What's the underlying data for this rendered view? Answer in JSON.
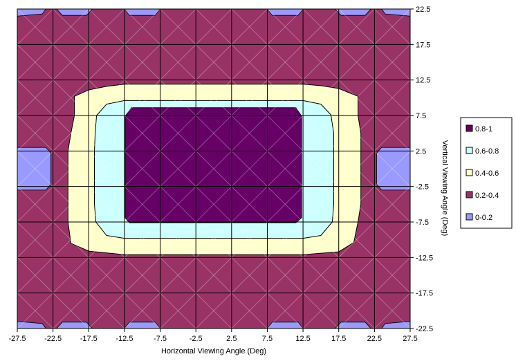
{
  "chart_data": {
    "type": "heatmap",
    "subtype": "contour",
    "title": "",
    "xlabel": "Horizontal Viewing Angle (Deg)",
    "ylabel": "Vertical Viewing Angle (Deg)",
    "xlim": [
      -27.5,
      27.5
    ],
    "ylim": [
      -22.5,
      22.5
    ],
    "x_ticks": [
      "-27.5",
      "-22.5",
      "-17.5",
      "-12.5",
      "-7.5",
      "-2.5",
      "2.5",
      "7.5",
      "12.5",
      "17.5",
      "22.5",
      "27.5"
    ],
    "y_ticks": [
      "22.5",
      "17.5",
      "12.5",
      "7.5",
      "2.5",
      "-2.5",
      "-7.5",
      "-12.5",
      "-17.5",
      "-22.5"
    ],
    "x_tick_values": [
      -27.5,
      -22.5,
      -17.5,
      -12.5,
      -7.5,
      -2.5,
      2.5,
      7.5,
      12.5,
      17.5,
      22.5,
      27.5
    ],
    "y_tick_values": [
      22.5,
      17.5,
      12.5,
      7.5,
      2.5,
      -2.5,
      -7.5,
      -12.5,
      -17.5,
      -22.5
    ],
    "grid": true,
    "legend_position": "right",
    "levels": [
      {
        "name": "0.8-1",
        "range": [
          0.8,
          1.0
        ],
        "color": "#660066"
      },
      {
        "name": "0.6-0.8",
        "range": [
          0.6,
          0.8
        ],
        "color": "#ccffff"
      },
      {
        "name": "0.4-0.6",
        "range": [
          0.4,
          0.6
        ],
        "color": "#ffffcc"
      },
      {
        "name": "0.2-0.4",
        "range": [
          0.2,
          0.4
        ],
        "color": "#993366"
      },
      {
        "name": "0-0.2",
        "range": [
          0.0,
          0.2
        ],
        "color": "#9999ff"
      }
    ],
    "contours": [
      {
        "level": "0.4-0.6",
        "points": [
          [
            -12.5,
            11.9
          ],
          [
            12.5,
            11.9
          ],
          [
            15,
            11.7
          ],
          [
            17.5,
            11.3
          ],
          [
            20.2,
            10.2
          ],
          [
            20.2,
            7.5
          ],
          [
            20.6,
            5
          ],
          [
            20.6,
            -5
          ],
          [
            20.2,
            -7.5
          ],
          [
            19.6,
            -10.4
          ],
          [
            17.5,
            -11.7
          ],
          [
            12.5,
            -12.1
          ],
          [
            -12.5,
            -12.1
          ],
          [
            -17.5,
            -11.6
          ],
          [
            -20,
            -10.5
          ],
          [
            -20.4,
            -7.5
          ],
          [
            -20.4,
            -5
          ],
          [
            -20.4,
            2.5
          ],
          [
            -20,
            5
          ],
          [
            -19.5,
            7.5
          ],
          [
            -19.5,
            10.2
          ],
          [
            -17.5,
            11.1
          ],
          [
            -15,
            11.6
          ]
        ]
      },
      {
        "level": "0.6-0.8",
        "points": [
          [
            -12.5,
            9.6
          ],
          [
            12.5,
            9.6
          ],
          [
            15,
            9.1
          ],
          [
            16.4,
            7.6
          ],
          [
            16.8,
            5
          ],
          [
            16.8,
            -5
          ],
          [
            16.6,
            -7.5
          ],
          [
            15,
            -9.4
          ],
          [
            12.5,
            -9.8
          ],
          [
            -12.5,
            -9.8
          ],
          [
            -15,
            -9.4
          ],
          [
            -16.5,
            -7.5
          ],
          [
            -16.7,
            -5
          ],
          [
            -16.7,
            2.5
          ],
          [
            -16.6,
            5
          ],
          [
            -16.4,
            7.5
          ],
          [
            -15,
            9.1
          ]
        ]
      },
      {
        "level": "0.8-1",
        "points": [
          [
            -11.5,
            8.6
          ],
          [
            11.5,
            8.6
          ],
          [
            12.3,
            7.4
          ],
          [
            12.3,
            -6.9
          ],
          [
            11.5,
            -7.6
          ],
          [
            -11.8,
            -7.6
          ],
          [
            -12.4,
            -6.9
          ],
          [
            -12.4,
            7.4
          ]
        ]
      }
    ],
    "low_regions": [
      {
        "level": "0-0.2",
        "points": [
          [
            -27.5,
            3
          ],
          [
            -23.5,
            3
          ],
          [
            -22.8,
            2.2
          ],
          [
            -22.8,
            -2.2
          ],
          [
            -23.5,
            -3
          ],
          [
            -27.5,
            -3
          ]
        ]
      },
      {
        "level": "0-0.2",
        "points": [
          [
            27.5,
            3
          ],
          [
            23.5,
            3
          ],
          [
            22.8,
            2.2
          ],
          [
            22.8,
            -2.2
          ],
          [
            23.5,
            -3
          ],
          [
            27.5,
            -3
          ]
        ]
      },
      {
        "level": "0-0.2",
        "points": [
          [
            -27.5,
            22.5
          ],
          [
            -23.5,
            22.5
          ],
          [
            -24,
            21.8
          ],
          [
            -27.5,
            21.5
          ]
        ]
      },
      {
        "level": "0-0.2",
        "points": [
          [
            -22,
            22.5
          ],
          [
            -17,
            22.5
          ],
          [
            -17.8,
            21.6
          ],
          [
            -21.2,
            21.6
          ]
        ]
      },
      {
        "level": "0-0.2",
        "points": [
          [
            -12.5,
            22.5
          ],
          [
            -7.5,
            22.5
          ],
          [
            -8.2,
            21.6
          ],
          [
            -11.8,
            21.6
          ]
        ]
      },
      {
        "level": "0-0.2",
        "points": [
          [
            7.5,
            22.5
          ],
          [
            12.5,
            22.5
          ],
          [
            11.8,
            21.6
          ],
          [
            8.2,
            21.6
          ]
        ]
      },
      {
        "level": "0-0.2",
        "points": [
          [
            17,
            22.5
          ],
          [
            22,
            22.5
          ],
          [
            21.2,
            21.6
          ],
          [
            17.8,
            21.6
          ]
        ]
      },
      {
        "level": "0-0.2",
        "points": [
          [
            23.5,
            22.5
          ],
          [
            27.5,
            22.5
          ],
          [
            27.5,
            21.5
          ],
          [
            24,
            21.8
          ]
        ]
      },
      {
        "level": "0-0.2",
        "points": [
          [
            -27.5,
            -22.5
          ],
          [
            -23.5,
            -22.5
          ],
          [
            -24,
            -21.8
          ],
          [
            -27.5,
            -21.5
          ]
        ]
      },
      {
        "level": "0-0.2",
        "points": [
          [
            -22,
            -22.5
          ],
          [
            -17,
            -22.5
          ],
          [
            -17.8,
            -21.6
          ],
          [
            -21.2,
            -21.6
          ]
        ]
      },
      {
        "level": "0-0.2",
        "points": [
          [
            -12.5,
            -22.5
          ],
          [
            -7.5,
            -22.5
          ],
          [
            -8.2,
            -21.6
          ],
          [
            -11.8,
            -21.6
          ]
        ]
      },
      {
        "level": "0-0.2",
        "points": [
          [
            7.5,
            -22.5
          ],
          [
            12.5,
            -22.5
          ],
          [
            11.8,
            -21.6
          ],
          [
            8.2,
            -21.6
          ]
        ]
      },
      {
        "level": "0-0.2",
        "points": [
          [
            17,
            -22.5
          ],
          [
            22,
            -22.5
          ],
          [
            21.2,
            -21.6
          ],
          [
            17.8,
            -21.6
          ]
        ]
      },
      {
        "level": "0-0.2",
        "points": [
          [
            23.5,
            -22.5
          ],
          [
            27.5,
            -22.5
          ],
          [
            27.5,
            -21.5
          ],
          [
            24,
            -21.8
          ]
        ]
      }
    ]
  }
}
